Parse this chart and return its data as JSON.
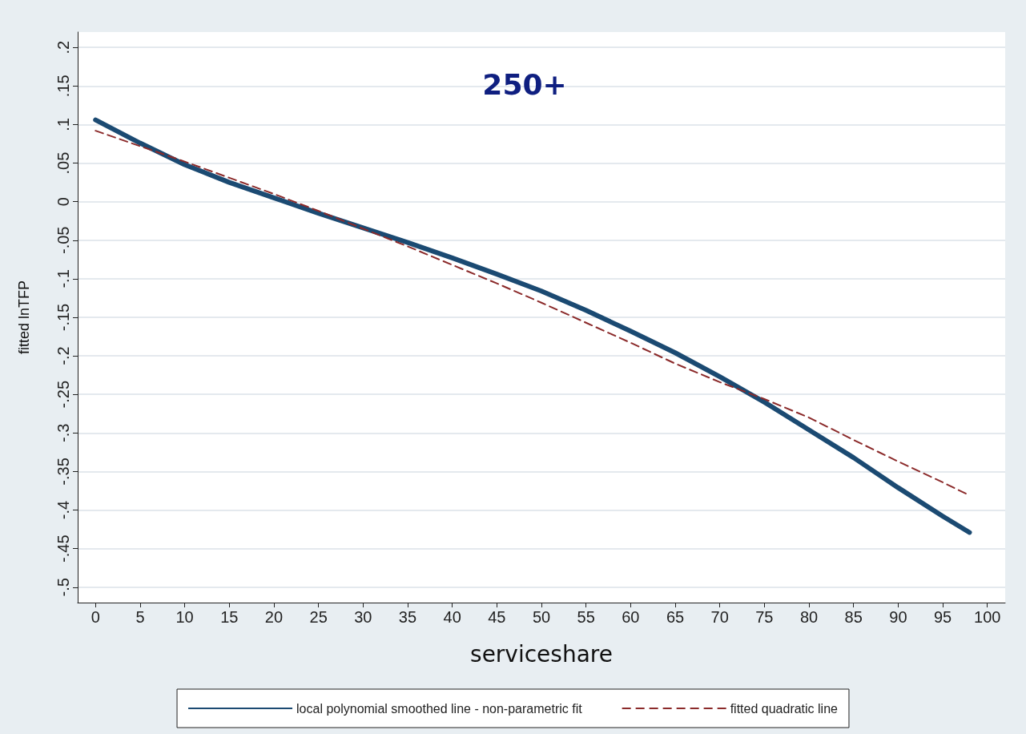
{
  "chart_data": {
    "type": "line",
    "title": "250+",
    "xlabel": "serviceshare",
    "ylabel": "fitted lnTFP",
    "xlim": [
      -2,
      102
    ],
    "xticks": [
      0,
      5,
      10,
      15,
      20,
      25,
      30,
      35,
      40,
      45,
      50,
      55,
      60,
      65,
      70,
      75,
      80,
      85,
      90,
      95,
      100
    ],
    "ylim": [
      -0.52,
      0.22
    ],
    "yticks": [
      {
        "value": 0.2,
        "label": ".2"
      },
      {
        "value": 0.15,
        "label": ".15"
      },
      {
        "value": 0.1,
        "label": ".1"
      },
      {
        "value": 0.05,
        "label": ".05"
      },
      0,
      {
        "value": -0.05,
        "label": "-.05"
      },
      {
        "value": -0.1,
        "label": "-.1"
      },
      {
        "value": -0.15,
        "label": "-.15"
      },
      {
        "value": -0.2,
        "label": "-.2"
      },
      {
        "value": -0.25,
        "label": "-.25"
      },
      {
        "value": -0.3,
        "label": "-.3"
      },
      {
        "value": -0.35,
        "label": "-.35"
      },
      {
        "value": -0.4,
        "label": "-.4"
      },
      {
        "value": -0.45,
        "label": "-.45"
      },
      {
        "value": -0.5,
        "label": "-.5"
      }
    ],
    "grid": "y",
    "legend": "bottom",
    "marker": "none",
    "series": [
      {
        "name": "local polynomial smoothed line - non-parametric fit",
        "color": "#1b4a72",
        "line_style": "solid",
        "x": [
          0,
          5,
          10,
          15,
          20,
          25,
          30,
          35,
          40,
          45,
          50,
          55,
          60,
          65,
          70,
          75,
          80,
          85,
          90,
          95,
          98
        ],
        "values": [
          0.106,
          0.076,
          0.048,
          0.025,
          0.005,
          -0.015,
          -0.034,
          -0.053,
          -0.073,
          -0.094,
          -0.116,
          -0.141,
          -0.168,
          -0.196,
          -0.227,
          -0.26,
          -0.296,
          -0.332,
          -0.371,
          -0.408,
          -0.429
        ]
      },
      {
        "name": "fitted quadratic line",
        "color": "#8b2a2a",
        "line_style": "dashed",
        "x": [
          0,
          5,
          10,
          15,
          20,
          25,
          30,
          35,
          40,
          45,
          50,
          55,
          60,
          65,
          70,
          75,
          80,
          85,
          90,
          95,
          98
        ],
        "values": [
          0.092,
          0.072,
          0.052,
          0.031,
          0.01,
          -0.012,
          -0.035,
          -0.058,
          -0.082,
          -0.106,
          -0.131,
          -0.157,
          -0.183,
          -0.21,
          -0.234,
          -0.256,
          -0.28,
          -0.309,
          -0.337,
          -0.364,
          -0.381
        ]
      }
    ]
  }
}
